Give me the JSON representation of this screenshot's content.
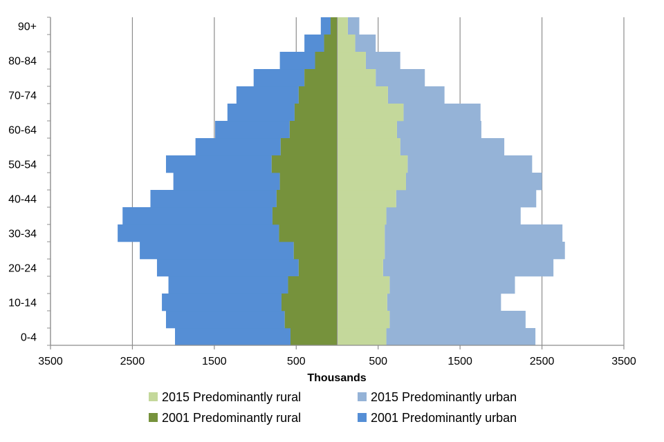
{
  "chart_data": {
    "type": "bar",
    "orientation": "horizontal",
    "layout": "population-pyramid",
    "xlabel": "Thousands",
    "xlim": [
      -3500,
      3500
    ],
    "x_ticks": [
      -3500,
      -2500,
      -1500,
      -500,
      500,
      1500,
      2500,
      3500
    ],
    "x_tick_labels": [
      "3500",
      "2500",
      "1500",
      "500",
      "500",
      "1500",
      "2500",
      "3500"
    ],
    "grid": "vertical",
    "legend_position": "bottom",
    "categories": [
      "0-4",
      "5-9",
      "10-14",
      "15-19",
      "20-24",
      "25-29",
      "30-34",
      "35-39",
      "40-44",
      "45-49",
      "50-54",
      "55-59",
      "60-64",
      "65-69",
      "70-74",
      "75-79",
      "80-84",
      "85-89",
      "90+"
    ],
    "category_labels_shown": [
      "0-4",
      "10-14",
      "20-24",
      "30-34",
      "40-44",
      "50-54",
      "60-64",
      "70-74",
      "80-84",
      "90+"
    ],
    "series": [
      {
        "name": "2015 Predominantly rural",
        "side": "right",
        "color": "#c4d89b",
        "values": [
          600,
          640,
          610,
          640,
          560,
          580,
          580,
          600,
          720,
          840,
          860,
          770,
          730,
          810,
          620,
          470,
          350,
          220,
          130
        ]
      },
      {
        "name": "2015 Predominantly urban",
        "side": "right",
        "color": "#95b3d7",
        "values": [
          1820,
          1660,
          1390,
          1530,
          2080,
          2200,
          2170,
          1640,
          1710,
          1660,
          1520,
          1270,
          1030,
          940,
          690,
          600,
          420,
          250,
          140
        ]
      },
      {
        "name": "2001 Predominantly rural",
        "side": "left",
        "color": "#76923c",
        "values": [
          570,
          640,
          680,
          600,
          470,
          530,
          710,
          790,
          740,
          700,
          800,
          690,
          580,
          520,
          470,
          400,
          270,
          160,
          80
        ]
      },
      {
        "name": "2001 Predominantly urban",
        "side": "left",
        "color": "#558ed5",
        "values": [
          1410,
          1450,
          1460,
          1460,
          1730,
          1880,
          1970,
          1830,
          1540,
          1300,
          1290,
          1040,
          910,
          820,
          760,
          620,
          430,
          240,
          120
        ]
      }
    ]
  }
}
